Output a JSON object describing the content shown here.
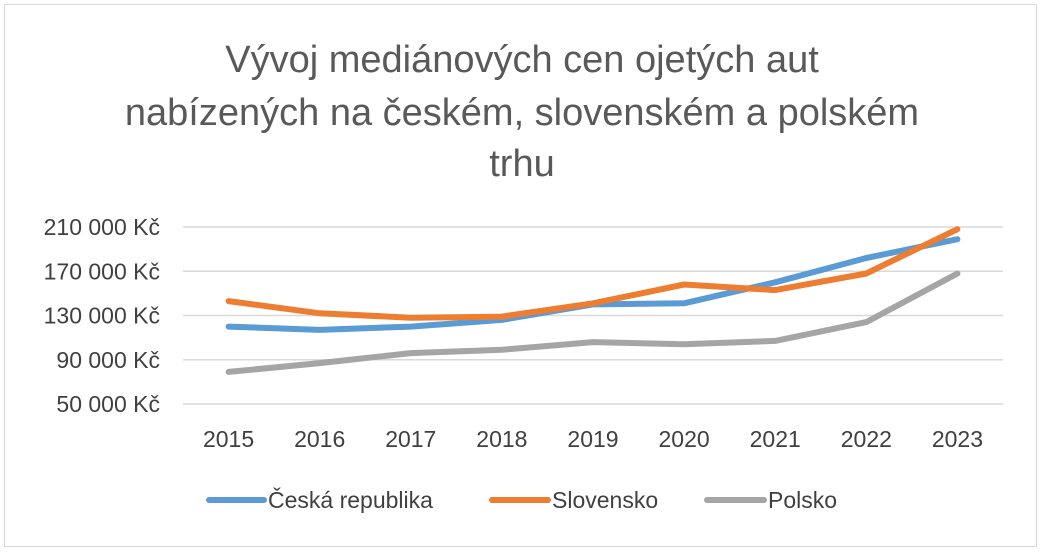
{
  "chart_data": {
    "type": "line",
    "title_lines": [
      "Vývoj mediánových cen ojetých aut",
      "nabízených na českém, slovenském a polském",
      "trhu"
    ],
    "x": [
      "2015",
      "2016",
      "2017",
      "2018",
      "2019",
      "2020",
      "2021",
      "2022",
      "2023"
    ],
    "y_ticks": [
      "50 000 Kč",
      "90 000 Kč",
      "130 000 Kč",
      "170 000 Kč",
      "210 000 Kč"
    ],
    "ylim": [
      50000,
      210000
    ],
    "grid": true,
    "legend_position": "bottom",
    "series": [
      {
        "name": "Česká republika",
        "color": "#5b9bd5",
        "values": [
          120000,
          117000,
          120000,
          126000,
          140000,
          141000,
          160000,
          182000,
          199000
        ]
      },
      {
        "name": "Slovensko",
        "color": "#ed7d31",
        "values": [
          143000,
          132000,
          128000,
          129000,
          141000,
          158000,
          153000,
          168000,
          208000
        ]
      },
      {
        "name": "Polsko",
        "color": "#a5a5a5",
        "values": [
          79000,
          87000,
          96000,
          99000,
          106000,
          104000,
          107000,
          124000,
          168000
        ]
      }
    ]
  }
}
